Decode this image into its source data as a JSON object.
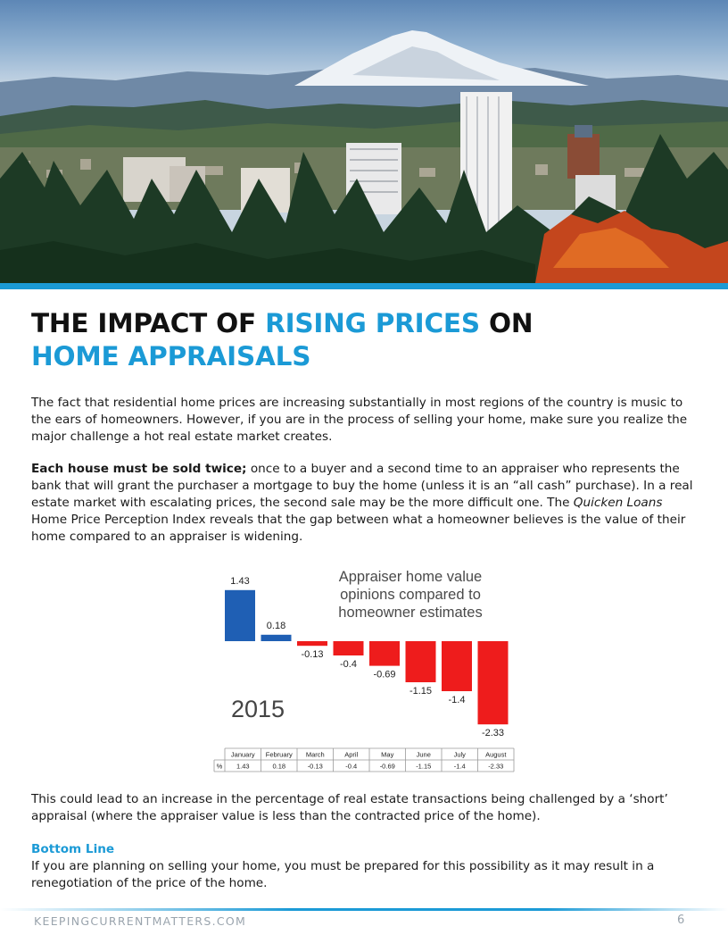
{
  "heading": {
    "line1_pre": "THE IMPACT OF ",
    "line1_accent": "RISING PRICES",
    "line1_post": " ON",
    "line2_accent": "HOME APPRAISALS"
  },
  "intro_text": "The fact that residential home prices are increasing substantially in most regions of the country is music to the ears of homeowners. However, if you are in the process of selling your home, make sure you realize the major challenge a hot real estate market creates.",
  "sold_twice": {
    "bold_lead": "Each house must be sold twice;",
    "text_a": " once to a buyer and a second time to an appraiser who represents the bank that will grant the purchaser a mortgage to buy the home (unless it is an “all cash” purchase). In a real estate market with escalating prices, the second sale may be the more difficult one. The ",
    "italic_name": "Quicken Loans",
    "text_b": " Home Price Perception Index reveals that the gap between what a homeowner believes is the value of their home compared to an appraiser is widening."
  },
  "chart_data": {
    "type": "bar",
    "title": "Appraiser home value opinions compared to homeowner estimates",
    "annotation": "2015",
    "categories": [
      "January",
      "February",
      "March",
      "April",
      "May",
      "June",
      "July",
      "August"
    ],
    "values": [
      1.43,
      0.18,
      -0.13,
      -0.4,
      -0.69,
      -1.15,
      -1.4,
      -2.33
    ],
    "value_labels": [
      "1.43",
      "0.18",
      "-0.13",
      "-0.4",
      "-0.69",
      "-1.15",
      "-1.4",
      "-2.33"
    ],
    "table_row_label": "%",
    "colors": {
      "positive": "#1f5fb4",
      "negative": "#ee1c1c"
    },
    "grid": false,
    "legend": "none"
  },
  "short_appraisal_text": "This could lead to an increase in the percentage of real estate transactions being challenged by a ‘short’ appraisal (where the appraiser value is less than the contracted price of the home).",
  "bottom_line": {
    "heading": "Bottom Line",
    "text": "If you are planning on selling your home, you must be prepared for this possibility as it may result in a renegotiation of the price of the home."
  },
  "footer": {
    "site": "KEEPINGCURRENTMATTERS.COM",
    "page_number": "6"
  },
  "colors": {
    "accent": "#1b9ad6",
    "heading": "#111111",
    "footer_text": "#9aa4ad"
  }
}
